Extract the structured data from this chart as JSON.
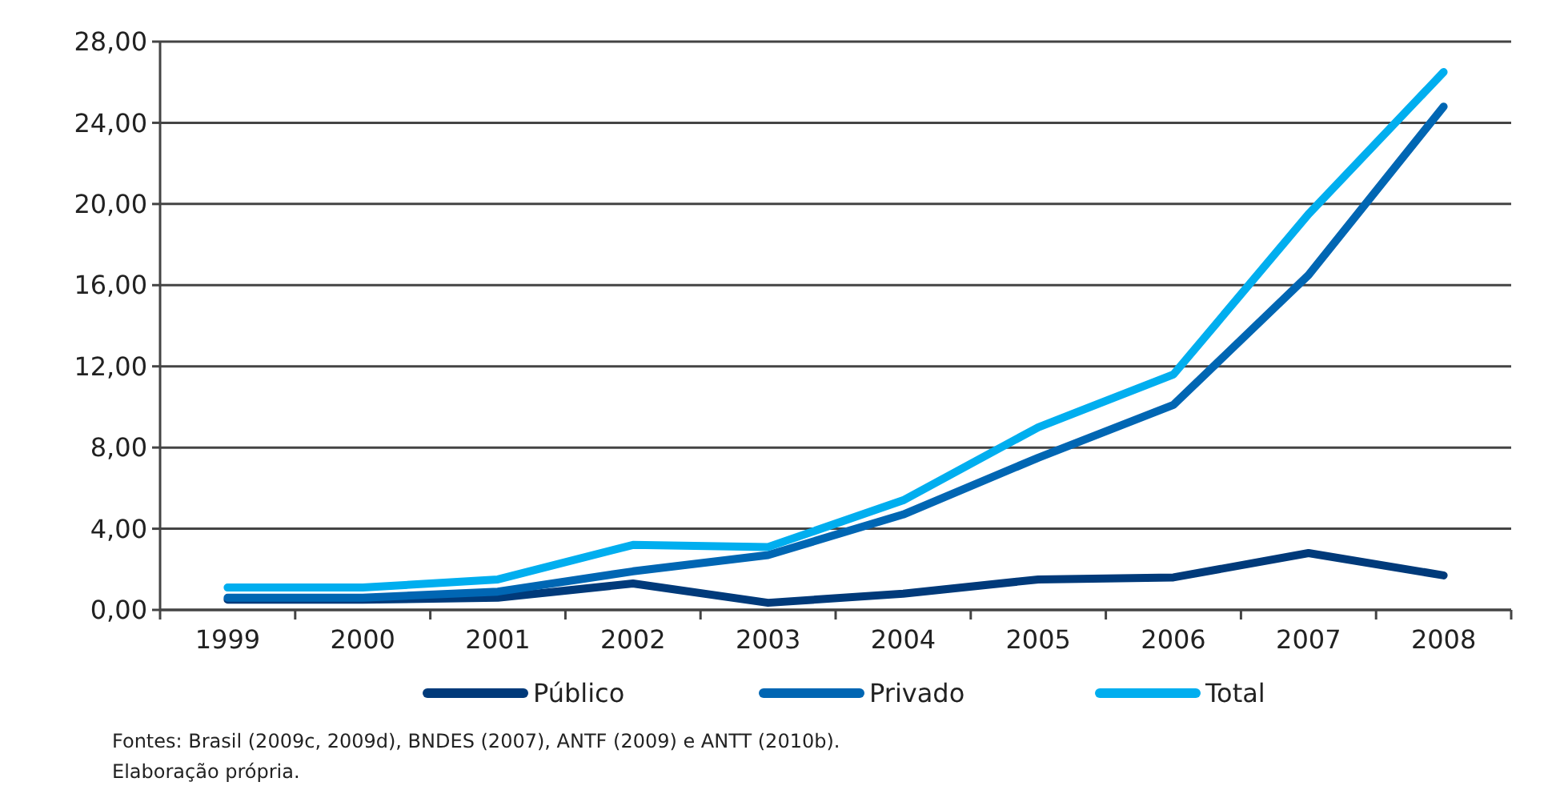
{
  "chart_data": {
    "type": "line",
    "categories": [
      "1999",
      "2000",
      "2001",
      "2002",
      "2003",
      "2004",
      "2005",
      "2006",
      "2007",
      "2008"
    ],
    "series": [
      {
        "name": "Público",
        "color": "#003a7a",
        "values": [
          0.5,
          0.5,
          0.6,
          1.3,
          0.35,
          0.8,
          1.5,
          1.6,
          2.8,
          1.7
        ]
      },
      {
        "name": "Privado",
        "color": "#0066b3",
        "values": [
          0.6,
          0.6,
          0.9,
          1.9,
          2.7,
          4.7,
          7.5,
          10.1,
          16.5,
          24.8
        ]
      },
      {
        "name": "Total",
        "color": "#00aeef",
        "values": [
          1.1,
          1.1,
          1.5,
          3.2,
          3.1,
          5.4,
          9.0,
          11.6,
          19.5,
          26.5
        ]
      }
    ],
    "ylim": [
      0,
      28
    ],
    "yticks": [
      {
        "value": 0,
        "label": "0,00"
      },
      {
        "value": 4,
        "label": "4,00"
      },
      {
        "value": 8,
        "label": "8,00"
      },
      {
        "value": 12,
        "label": "12,00"
      },
      {
        "value": 16,
        "label": "16,00"
      },
      {
        "value": 20,
        "label": "20,00"
      },
      {
        "value": 24,
        "label": "24,00"
      },
      {
        "value": 28,
        "label": "28,00"
      }
    ],
    "grid": "y",
    "legend": "bottom",
    "marker": "none",
    "line_style": "solid",
    "annotations": [
      "Fontes: Brasil (2009c, 2009d), BNDES (2007), ANTF (2009) e ANTT (2010b).",
      "Elaboração própria."
    ]
  }
}
